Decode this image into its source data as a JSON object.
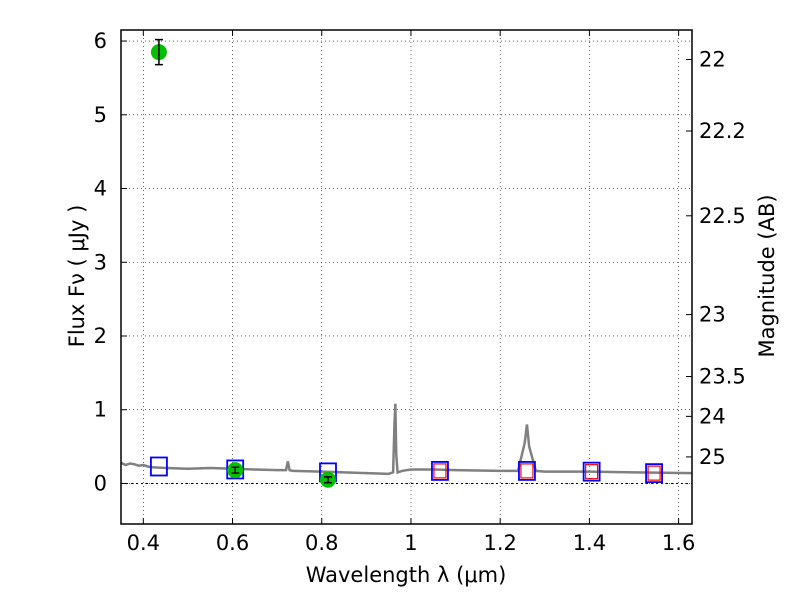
{
  "chart_data": {
    "type": "scatter",
    "xlabel": "Wavelength  λ (μm)",
    "ylabel": "Flux  Fν  ( μJy )",
    "ylabel_right": "Magnitude (AB)",
    "xlim": [
      0.35,
      1.63
    ],
    "ylim": [
      -0.55,
      6.15
    ],
    "grid": true,
    "x_ticks": [
      0.4,
      0.6,
      0.8,
      1.0,
      1.2,
      1.4,
      1.6
    ],
    "x_tick_labels": [
      "0.4",
      "0.6",
      "0.8",
      "1",
      "1.2",
      "1.4",
      "1.6"
    ],
    "y_ticks": [
      0,
      1,
      2,
      3,
      4,
      5,
      6
    ],
    "y_tick_labels": [
      "0",
      "1",
      "2",
      "3",
      "4",
      "5",
      "6"
    ],
    "right_ticks": [
      {
        "label": "22",
        "flux": 5.75
      },
      {
        "label": "22.2",
        "flux": 4.78
      },
      {
        "label": "22.5",
        "flux": 3.63
      },
      {
        "label": "23",
        "flux": 2.29
      },
      {
        "label": "23.5",
        "flux": 1.45
      },
      {
        "label": "24",
        "flux": 0.91
      },
      {
        "label": "25",
        "flux": 0.36
      }
    ],
    "series": [
      {
        "kind": "line",
        "color": "#808080",
        "x": [
          0.35,
          0.36,
          0.37,
          0.38,
          0.39,
          0.4,
          0.41,
          0.42,
          0.45,
          0.5,
          0.55,
          0.6,
          0.65,
          0.7,
          0.72,
          0.724,
          0.728,
          0.735,
          0.8,
          0.85,
          0.9,
          0.95,
          0.96,
          0.963,
          0.965,
          0.967,
          0.97,
          0.98,
          1.0,
          1.05,
          1.1,
          1.2,
          1.24,
          1.255,
          1.26,
          1.265,
          1.28,
          1.3,
          1.4,
          1.5,
          1.63
        ],
        "y": [
          0.28,
          0.25,
          0.27,
          0.26,
          0.24,
          0.25,
          0.23,
          0.22,
          0.21,
          0.2,
          0.21,
          0.2,
          0.19,
          0.18,
          0.18,
          0.3,
          0.18,
          0.17,
          0.16,
          0.15,
          0.14,
          0.13,
          0.15,
          0.8,
          1.08,
          0.4,
          0.15,
          0.17,
          0.19,
          0.19,
          0.18,
          0.17,
          0.17,
          0.55,
          0.8,
          0.5,
          0.17,
          0.16,
          0.16,
          0.15,
          0.14
        ]
      },
      {
        "kind": "square-open",
        "color": "#0000ff",
        "x": [
          0.435,
          0.606,
          0.814,
          1.065,
          1.26,
          1.405,
          1.545
        ],
        "y": [
          0.23,
          0.19,
          0.15,
          0.17,
          0.17,
          0.16,
          0.14
        ]
      },
      {
        "kind": "square-red",
        "color": "#ff0000",
        "x": [
          1.065,
          1.26,
          1.405,
          1.545
        ],
        "y": [
          0.17,
          0.17,
          0.16,
          0.14
        ]
      },
      {
        "kind": "circle-errorbar",
        "color": "#00c000",
        "x": [
          0.435,
          0.606,
          0.814
        ],
        "y": [
          5.85,
          0.18,
          0.05
        ],
        "yerr": [
          0.17,
          0.04,
          0.04
        ]
      }
    ]
  }
}
